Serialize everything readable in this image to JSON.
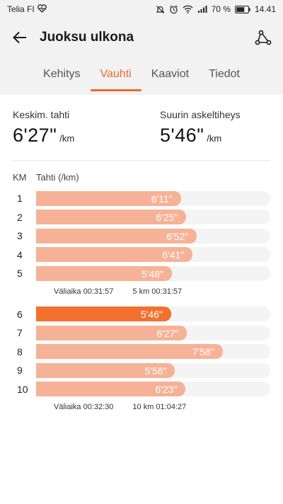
{
  "status_bar": {
    "carrier": "Telia FI",
    "battery": "70 %",
    "time": "14.41",
    "icons": [
      "heart-monitor-icon",
      "mute-icon",
      "alarm-icon",
      "wifi-icon",
      "signal-icon",
      "battery-icon"
    ]
  },
  "header": {
    "title": "Juoksu ulkona",
    "back_icon": "back-arrow-icon",
    "route_icon": "route-icon"
  },
  "tabs": [
    {
      "label": "Kehitys",
      "active": false
    },
    {
      "label": "Vauhti",
      "active": true
    },
    {
      "label": "Kaaviot",
      "active": false
    },
    {
      "label": "Tiedot",
      "active": false
    }
  ],
  "summary": {
    "avg_pace_label": "Keskim. tahti",
    "avg_pace_value": "6'27\"",
    "avg_pace_unit": "/km",
    "max_cadence_label": "Suurin askeltiheys",
    "max_cadence_value": "5'46\"",
    "max_cadence_unit": "/km"
  },
  "table": {
    "col_km": "KM",
    "col_pace": "Tahti (/km)",
    "scale_max_seconds": 600,
    "groups": [
      {
        "rows": [
          {
            "km": "1",
            "pace": "6'11\"",
            "seconds": 371,
            "best": false
          },
          {
            "km": "2",
            "pace": "6'25\"",
            "seconds": 385,
            "best": false
          },
          {
            "km": "3",
            "pace": "6'52\"",
            "seconds": 412,
            "best": false
          },
          {
            "km": "4",
            "pace": "6'41\"",
            "seconds": 401,
            "best": false
          },
          {
            "km": "5",
            "pace": "5'48\"",
            "seconds": 348,
            "best": false
          }
        ],
        "split_label": "Väliaika 00:31:57",
        "cumulative_label": "5 km 00:31:57"
      },
      {
        "rows": [
          {
            "km": "6",
            "pace": "5'46\"",
            "seconds": 346,
            "best": true
          },
          {
            "km": "7",
            "pace": "6'27\"",
            "seconds": 387,
            "best": false
          },
          {
            "km": "8",
            "pace": "7'58\"",
            "seconds": 478,
            "best": false
          },
          {
            "km": "9",
            "pace": "5'56\"",
            "seconds": 356,
            "best": false
          },
          {
            "km": "10",
            "pace": "6'23\"",
            "seconds": 383,
            "best": false
          }
        ],
        "split_label": "Väliaika 00:32:30",
        "cumulative_label": "10 km 01:04:27"
      }
    ]
  },
  "colors": {
    "accent": "#ea6a2f",
    "bar": "#f6b296",
    "bar_best": "#f4702f",
    "track": "#f4f4f4"
  }
}
